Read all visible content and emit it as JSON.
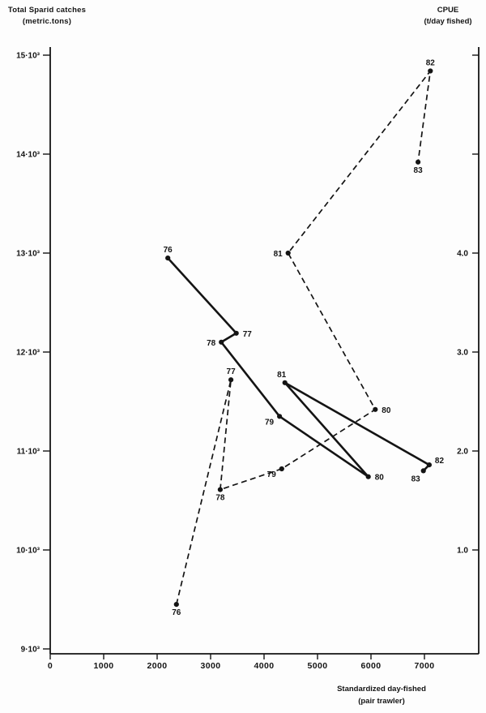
{
  "colors": {
    "ink": "#141414",
    "paper": "#fdfdfd"
  },
  "chart_data": {
    "type": "line",
    "title": "",
    "grid": false,
    "legend": "none - series distinguished by solid vs dashed stroke",
    "x_axis": {
      "title_line1": "Standardized day-fished",
      "title_line2": "(pair trawler)",
      "tick_values": [
        0,
        1000,
        2000,
        3000,
        4000,
        5000,
        6000,
        7000
      ],
      "tick_labels": [
        "0",
        "1000",
        "2000",
        "3000",
        "4000",
        "5000",
        "6000",
        "7000"
      ],
      "range": [
        0,
        8000
      ]
    },
    "y_axis_left": {
      "title_line1": "Total Sparid catches",
      "title_line2": "(metric.tons)",
      "unit": "metric tons",
      "tick_values": [
        15000,
        14000,
        13000,
        12000,
        11000,
        10000,
        9000
      ],
      "tick_labels": [
        "15·10³",
        "14·10³",
        "13·10³",
        "12·10³",
        "11·10³",
        "10·10³",
        "9·10³"
      ],
      "range": [
        9000,
        15100
      ]
    },
    "y_axis_right": {
      "title_line1": "CPUE",
      "title_line2": "(t/day fished)",
      "unit": "t/day fished",
      "tick_values": [
        4.0,
        3.0,
        2.0,
        1.0
      ],
      "tick_labels": [
        "4.0",
        "3.0",
        "2.0",
        "1.0"
      ],
      "minor_tick_values": [
        6.0,
        5.0
      ],
      "range": [
        0,
        6.1
      ]
    },
    "series": [
      {
        "id": "catches",
        "name": "Total Sparid catches",
        "style": "solid",
        "axis": "left",
        "points": [
          {
            "year": "76",
            "x": 2200,
            "y": 12950,
            "label_pos": "above"
          },
          {
            "year": "77",
            "x": 3480,
            "y": 12190,
            "label_pos": "right"
          },
          {
            "year": "78",
            "x": 3200,
            "y": 12100,
            "label_pos": "left"
          },
          {
            "year": "79",
            "x": 4290,
            "y": 11350,
            "label_pos": "left-below"
          },
          {
            "year": "80",
            "x": 5950,
            "y": 10740,
            "label_pos": "right"
          },
          {
            "year": "81",
            "x": 4390,
            "y": 11690,
            "label_pos": "above-left"
          },
          {
            "year": "82",
            "x": 7090,
            "y": 10860,
            "label_pos": "right-above"
          },
          {
            "year": "83",
            "x": 6980,
            "y": 10800,
            "label_pos": "below-left"
          }
        ]
      },
      {
        "id": "cpue",
        "name": "CPUE",
        "style": "dashed",
        "axis": "right",
        "points": [
          {
            "year": "76",
            "x": 2360,
            "y": 0.45,
            "label_pos": "below"
          },
          {
            "year": "77",
            "x": 3380,
            "y": 2.72,
            "label_pos": "above"
          },
          {
            "year": "78",
            "x": 3180,
            "y": 1.61,
            "label_pos": "below"
          },
          {
            "year": "79",
            "x": 4330,
            "y": 1.82,
            "label_pos": "left-below"
          },
          {
            "year": "80",
            "x": 6080,
            "y": 2.42,
            "label_pos": "right"
          },
          {
            "year": "81",
            "x": 4450,
            "y": 4.0,
            "label_pos": "left"
          },
          {
            "year": "82",
            "x": 7110,
            "y": 5.84,
            "label_pos": "above"
          },
          {
            "year": "83",
            "x": 6880,
            "y": 4.92,
            "label_pos": "below"
          }
        ]
      }
    ]
  }
}
